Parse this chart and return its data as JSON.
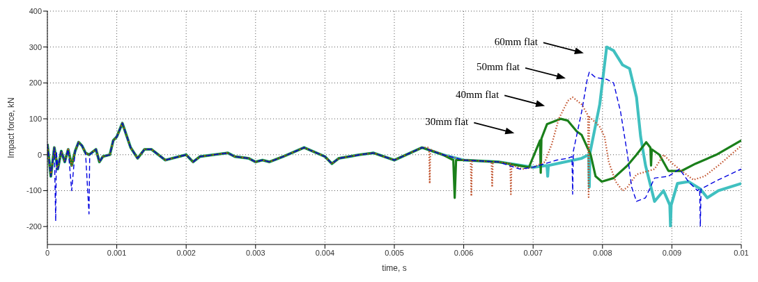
{
  "chart_data": {
    "type": "line",
    "xlabel": "time, s",
    "ylabel": "Impact force, kN",
    "xlim": [
      0,
      0.01
    ],
    "xticks": [
      0,
      0.001,
      0.002,
      0.003,
      0.004,
      0.005,
      0.006,
      0.007,
      0.008,
      0.009,
      0.01
    ],
    "ylim": [
      -250,
      400
    ],
    "yticks": [
      -200,
      -100,
      0,
      100,
      200,
      300,
      400
    ],
    "grid": true,
    "marker": "none",
    "series": [
      {
        "color": "#40c0c0",
        "line_style": "solid",
        "x": [
          0,
          5e-05,
          0.0001,
          0.00015,
          0.0002,
          0.00025,
          0.0003,
          0.00035,
          0.0004,
          0.00045,
          0.0005,
          0.00055,
          0.0006,
          0.0007,
          0.00075,
          0.0008,
          0.0009,
          0.00095,
          0.001,
          0.00108,
          0.0012,
          0.0013,
          0.0014,
          0.0015,
          0.0016,
          0.0017,
          0.0019,
          0.002,
          0.0021,
          0.0022,
          0.0024,
          0.0026,
          0.0027,
          0.0029,
          0.003,
          0.0031,
          0.0032,
          0.0034,
          0.0037,
          0.004,
          0.0041,
          0.0042,
          0.0045,
          0.0047,
          0.005,
          0.0054,
          0.0057,
          0.006,
          0.0065,
          0.007,
          0.0072,
          0.00721,
          0.00722,
          0.0077,
          0.0078,
          0.00781,
          0.00782,
          0.00796,
          0.00806,
          0.00816,
          0.00829,
          0.00839,
          0.00849,
          0.00855,
          0.00862,
          0.00875,
          0.00888,
          0.00897,
          0.00898,
          0.00899,
          0.00908,
          0.00924,
          0.00941,
          0.00951,
          0.00967,
          0.01
        ],
        "values": [
          30,
          -60,
          20,
          -40,
          10,
          -20,
          15,
          -30,
          10,
          35,
          25,
          5,
          0,
          15,
          -20,
          -5,
          0,
          40,
          50,
          88,
          20,
          -10,
          15,
          15,
          0,
          -15,
          -5,
          0,
          -20,
          -5,
          0,
          5,
          -5,
          -10,
          -20,
          -15,
          -20,
          -5,
          20,
          -5,
          -25,
          -10,
          0,
          5,
          -15,
          20,
          0,
          -15,
          -20,
          -35,
          -30,
          -60,
          -30,
          -10,
          0,
          -90,
          5,
          140,
          300,
          290,
          250,
          240,
          160,
          50,
          -30,
          -130,
          -100,
          -140,
          -198,
          -140,
          -80,
          -75,
          -95,
          -120,
          -100,
          -80
        ]
      },
      {
        "color": "#1a7f1a",
        "line_style": "solid",
        "x": [
          0,
          5e-05,
          0.0001,
          0.00015,
          0.0002,
          0.00025,
          0.0003,
          0.00035,
          0.0004,
          0.00045,
          0.0005,
          0.00055,
          0.0006,
          0.0007,
          0.00075,
          0.0008,
          0.0009,
          0.00095,
          0.001,
          0.00108,
          0.0012,
          0.0013,
          0.0014,
          0.0015,
          0.0016,
          0.0017,
          0.0019,
          0.002,
          0.0021,
          0.0022,
          0.0024,
          0.0026,
          0.0027,
          0.0029,
          0.003,
          0.0031,
          0.0032,
          0.0034,
          0.0037,
          0.004,
          0.0041,
          0.0042,
          0.0045,
          0.0047,
          0.005,
          0.0054,
          0.0057,
          0.00585,
          0.00587,
          0.00589,
          0.006,
          0.0065,
          0.00694,
          0.0071,
          0.00711,
          0.00712,
          0.0072,
          0.0074,
          0.0075,
          0.00763,
          0.0077,
          0.00783,
          0.0079,
          0.00799,
          0.00816,
          0.00836,
          0.00849,
          0.00863,
          0.00869,
          0.0087,
          0.00871,
          0.00882,
          0.00895,
          0.00914,
          0.00934,
          0.00964,
          0.01
        ],
        "values": [
          30,
          -60,
          20,
          -40,
          10,
          -20,
          15,
          -30,
          10,
          35,
          25,
          5,
          0,
          15,
          -20,
          -5,
          0,
          40,
          50,
          88,
          20,
          -10,
          15,
          15,
          0,
          -15,
          -5,
          0,
          -20,
          -5,
          0,
          5,
          -5,
          -10,
          -20,
          -15,
          -20,
          -5,
          20,
          -5,
          -25,
          -10,
          0,
          5,
          -15,
          20,
          0,
          -15,
          -120,
          -15,
          -15,
          -20,
          -35,
          40,
          -50,
          45,
          85,
          100,
          95,
          65,
          55,
          0,
          -60,
          -75,
          -65,
          -30,
          0,
          35,
          20,
          -30,
          15,
          0,
          -45,
          -45,
          -25,
          0,
          40
        ]
      },
      {
        "color": "#c0502a",
        "line_style": "dotted",
        "x": [
          0,
          5e-05,
          0.0001,
          0.00015,
          0.0002,
          0.00025,
          0.0003,
          0.00035,
          0.0004,
          0.00045,
          0.0005,
          0.00055,
          0.0006,
          0.0007,
          0.00075,
          0.0008,
          0.0009,
          0.00095,
          0.001,
          0.00108,
          0.0012,
          0.0013,
          0.0014,
          0.0015,
          0.0016,
          0.0017,
          0.0019,
          0.002,
          0.0021,
          0.0022,
          0.0024,
          0.0026,
          0.0027,
          0.0029,
          0.003,
          0.0031,
          0.0032,
          0.0034,
          0.0037,
          0.004,
          0.0041,
          0.0042,
          0.0045,
          0.0047,
          0.005,
          0.0054,
          0.0055,
          0.00551,
          0.00552,
          0.0057,
          0.006,
          0.0061,
          0.00611,
          0.00612,
          0.0064,
          0.00641,
          0.00642,
          0.0065,
          0.00667,
          0.00668,
          0.00669,
          0.00684,
          0.007,
          0.00717,
          0.00727,
          0.00737,
          0.0075,
          0.00757,
          0.0077,
          0.00779,
          0.0078,
          0.00781,
          0.0079,
          0.00796,
          0.00803,
          0.00809,
          0.00819,
          0.00829,
          0.00836,
          0.00849,
          0.00875,
          0.00888,
          0.00901,
          0.00914,
          0.00931,
          0.00947,
          0.00967,
          0.01
        ],
        "values": [
          30,
          -60,
          20,
          -40,
          10,
          -20,
          15,
          -30,
          10,
          35,
          25,
          5,
          0,
          15,
          -20,
          -5,
          0,
          40,
          50,
          88,
          20,
          -10,
          15,
          15,
          0,
          -15,
          -5,
          0,
          -20,
          -5,
          0,
          5,
          -5,
          -10,
          -20,
          -15,
          -20,
          -5,
          20,
          -5,
          -25,
          -10,
          0,
          5,
          -15,
          20,
          20,
          -80,
          15,
          0,
          -15,
          -15,
          -115,
          -15,
          -20,
          -90,
          -20,
          -20,
          -25,
          -110,
          -28,
          -40,
          -35,
          -20,
          30,
          100,
          150,
          160,
          140,
          110,
          -118,
          105,
          90,
          78,
          50,
          -20,
          -75,
          -100,
          -90,
          -55,
          -40,
          0,
          -25,
          -45,
          -70,
          -60,
          -30,
          25
        ]
      },
      {
        "color": "#0000e0",
        "line_style": "dashed",
        "x": [
          0,
          5e-05,
          0.0001,
          0.00012,
          0.00013,
          0.00015,
          0.0002,
          0.00025,
          0.0003,
          0.00035,
          0.0004,
          0.00045,
          0.0005,
          0.00055,
          0.0006,
          0.00061,
          0.0007,
          0.00075,
          0.0008,
          0.0009,
          0.00095,
          0.001,
          0.00108,
          0.0012,
          0.0013,
          0.0014,
          0.0015,
          0.0016,
          0.0017,
          0.0019,
          0.002,
          0.0021,
          0.0022,
          0.0024,
          0.0026,
          0.0027,
          0.0029,
          0.003,
          0.0031,
          0.0032,
          0.0034,
          0.0037,
          0.004,
          0.0041,
          0.0042,
          0.0045,
          0.0047,
          0.005,
          0.0054,
          0.0057,
          0.006,
          0.0065,
          0.00681,
          0.007,
          0.00734,
          0.0075,
          0.00756,
          0.00757,
          0.00758,
          0.0077,
          0.00778,
          0.00781,
          0.0079,
          0.00806,
          0.00816,
          0.00826,
          0.00836,
          0.00842,
          0.00849,
          0.00862,
          0.00875,
          0.00895,
          0.00911,
          0.00924,
          0.00937,
          0.0094,
          0.00941,
          0.00942,
          0.00947,
          0.00967,
          0.01
        ],
        "values": [
          30,
          -60,
          20,
          -185,
          10,
          -40,
          10,
          -20,
          15,
          -100,
          10,
          35,
          25,
          5,
          -165,
          0,
          15,
          -20,
          -5,
          0,
          40,
          50,
          88,
          20,
          -10,
          15,
          15,
          0,
          -15,
          -5,
          0,
          -20,
          -5,
          0,
          5,
          -5,
          -10,
          -20,
          -15,
          -20,
          -5,
          20,
          -5,
          -25,
          -10,
          0,
          5,
          -15,
          20,
          0,
          -15,
          -20,
          -40,
          -35,
          -15,
          -10,
          -5,
          -110,
          10,
          120,
          210,
          230,
          215,
          210,
          200,
          120,
          0,
          -90,
          -130,
          -120,
          -65,
          -60,
          -40,
          -75,
          -100,
          -95,
          -200,
          -95,
          -90,
          -70,
          -40
        ]
      }
    ],
    "annotations": [
      "60mm flat",
      "50mm flat",
      "40mm flat",
      "30mm flat"
    ]
  }
}
